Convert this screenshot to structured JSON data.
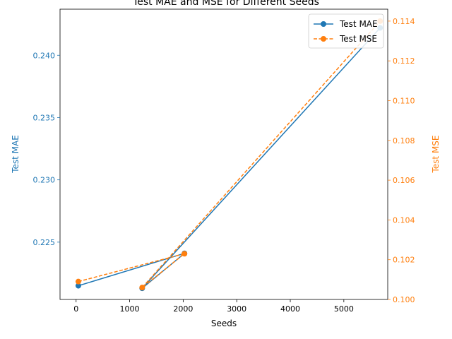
{
  "chart_data": {
    "type": "line",
    "title": "Test MAE and MSE for Different Seeds",
    "xlabel": "Seeds",
    "xlim": [
      -300,
      5820
    ],
    "xticks": [
      0,
      1000,
      2000,
      3000,
      4000,
      5000
    ],
    "x": [
      42,
      2024,
      1234,
      5678
    ],
    "left_axis": {
      "label": "Test MAE",
      "color": "#1f77b4",
      "ylim": [
        0.2204,
        0.2437
      ],
      "ticks": [
        "0.225",
        "0.230",
        "0.235",
        "0.240"
      ],
      "tick_values": [
        0.225,
        0.23,
        0.235,
        0.24
      ]
    },
    "right_axis": {
      "label": "Test MSE",
      "color": "#ff7f0e",
      "ylim": [
        0.1,
        0.1146
      ],
      "ticks": [
        "0.100",
        "0.102",
        "0.104",
        "0.106",
        "0.108",
        "0.110",
        "0.112",
        "0.114"
      ],
      "tick_values": [
        0.1,
        0.102,
        0.104,
        0.106,
        0.108,
        0.11,
        0.112,
        0.114
      ]
    },
    "series": [
      {
        "name": "Test MAE",
        "axis": "left",
        "color": "#1f77b4",
        "linestyle": "solid",
        "values": [
          0.2215,
          0.2241,
          0.2213,
          0.2422
        ]
      },
      {
        "name": "Test MSE",
        "axis": "right",
        "color": "#ff7f0e",
        "linestyle": "dashed",
        "values": [
          0.1009,
          0.1023,
          0.1006,
          0.114
        ]
      }
    ],
    "legend": {
      "placement": "top-right",
      "entries": [
        "Test MAE",
        "Test MSE"
      ]
    },
    "grid": false
  }
}
